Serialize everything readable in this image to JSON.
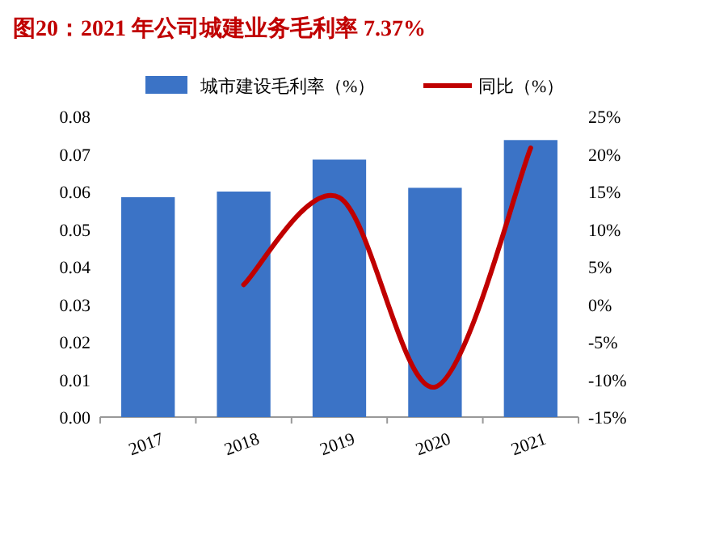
{
  "chart_data": {
    "type": "bar",
    "title": "图20：2021 年公司城建业务毛利率 7.37%",
    "categories": [
      "2017",
      "2018",
      "2019",
      "2020",
      "2021"
    ],
    "series": [
      {
        "name": "城市建设毛利率（%）",
        "color": "#3b73c6",
        "values": [
          0.0585,
          0.06,
          0.0685,
          0.061,
          0.0737
        ]
      },
      {
        "name": "同比（%）",
        "color": "#c00000",
        "type": "line",
        "axis": "y2",
        "values": [
          null,
          2.6,
          14.2,
          -11,
          20.8
        ]
      }
    ],
    "ylim": [
      0,
      0.08
    ],
    "yticks": [
      {
        "value": 0,
        "label": "0.00"
      },
      {
        "value": 0.01,
        "label": "0.01"
      },
      {
        "value": 0.02,
        "label": "0.02"
      },
      {
        "value": 0.03,
        "label": "0.03"
      },
      {
        "value": 0.04,
        "label": "0.04"
      },
      {
        "value": 0.05,
        "label": "0.05"
      },
      {
        "value": 0.06,
        "label": "0.06"
      },
      {
        "value": 0.07,
        "label": "0.07"
      },
      {
        "value": 0.08,
        "label": "0.08"
      }
    ],
    "y2lim": [
      -15,
      25
    ],
    "y2ticks": [
      {
        "value": -15,
        "label": "-15%"
      },
      {
        "value": -10,
        "label": "-10%"
      },
      {
        "value": -5,
        "label": "-5%"
      },
      {
        "value": 0,
        "label": "0%"
      },
      {
        "value": 5,
        "label": "5%"
      },
      {
        "value": 10,
        "label": "10%"
      },
      {
        "value": 15,
        "label": "15%"
      },
      {
        "value": 20,
        "label": "20%"
      },
      {
        "value": 25,
        "label": "25%"
      }
    ],
    "legend": "top",
    "grid": false
  }
}
